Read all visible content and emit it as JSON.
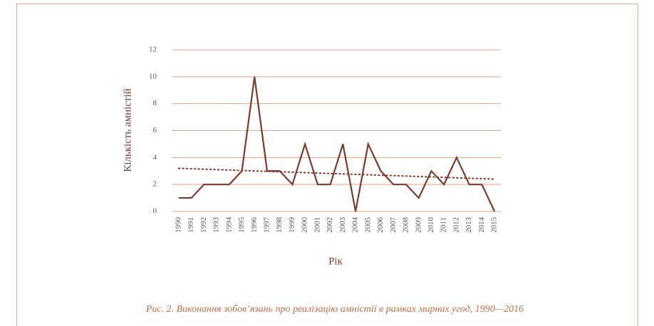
{
  "chart_data": {
    "type": "line",
    "ylabel": "Кількість амністій",
    "xlabel": "Рік",
    "caption": "Рис. 2. Виконання зобов’язань про реалізацію амністії в рамках мирних угод, 1990—2016",
    "categories": [
      "1990",
      "1991",
      "1992",
      "1993",
      "1994",
      "1995",
      "1996",
      "1997",
      "1998",
      "1999",
      "2000",
      "2001",
      "2002",
      "2003",
      "2004",
      "2005",
      "2006",
      "2007",
      "2008",
      "2009",
      "2010",
      "2011",
      "2012",
      "2013",
      "2014",
      "2015"
    ],
    "values": [
      1,
      1,
      2,
      2,
      2,
      3,
      10,
      3,
      3,
      2,
      5,
      2,
      2,
      5,
      0,
      5,
      3,
      2,
      2,
      1,
      3,
      2,
      4,
      2,
      2,
      0
    ],
    "color": "#7b3a2c",
    "trendline": {
      "values": [
        3.2,
        2.4
      ],
      "color": "#7b3a2c"
    },
    "ylim": [
      0,
      12
    ],
    "yticks": [
      0,
      2,
      4,
      6,
      8,
      10,
      12
    ],
    "grid": true,
    "grid_color": "#e9a27e"
  }
}
